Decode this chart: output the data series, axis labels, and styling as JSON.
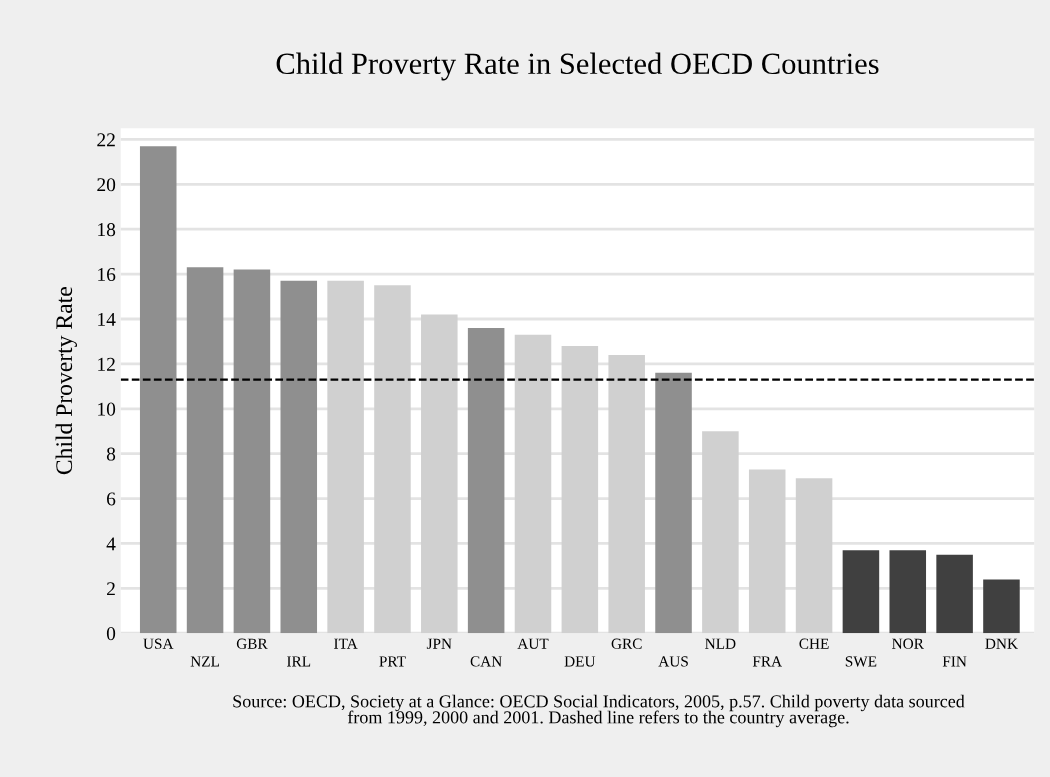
{
  "chart_data": {
    "type": "bar",
    "title": "Child Proverty Rate in Selected OECD Countries",
    "ylabel": "Child Proverty Rate",
    "categories": [
      "USA",
      "NZL",
      "GBR",
      "IRL",
      "ITA",
      "PRT",
      "JPN",
      "CAN",
      "AUT",
      "DEU",
      "GRC",
      "AUS",
      "NLD",
      "FRA",
      "CHE",
      "SWE",
      "NOR",
      "FIN",
      "DNK"
    ],
    "values": [
      21.7,
      16.3,
      16.2,
      15.7,
      15.7,
      15.5,
      14.2,
      13.6,
      13.3,
      12.8,
      12.4,
      11.6,
      9.0,
      7.3,
      6.9,
      3.7,
      3.7,
      3.5,
      2.4
    ],
    "colors": [
      "#8f8f8f",
      "#8f8f8f",
      "#8f8f8f",
      "#8f8f8f",
      "#d0d0d0",
      "#d0d0d0",
      "#d0d0d0",
      "#8f8f8f",
      "#d0d0d0",
      "#d0d0d0",
      "#d0d0d0",
      "#8f8f8f",
      "#d0d0d0",
      "#d0d0d0",
      "#d0d0d0",
      "#404040",
      "#404040",
      "#404040",
      "#404040"
    ],
    "ylim": [
      0,
      22.5
    ],
    "yticks": [
      0,
      2,
      4,
      6,
      8,
      10,
      12,
      14,
      16,
      18,
      20,
      22
    ],
    "grid": "y",
    "ref_lines": [
      {
        "axis": "y",
        "value": 11.3,
        "color": "#000000",
        "line_style": "dashed"
      }
    ],
    "annotations": [
      "Source: OECD, Society at a Glance: OECD Social Indicators, 2005, p.57. Child poverty data sourced\nfrom 1999, 2000 and 2001. Dashed line refers to the country average."
    ]
  }
}
